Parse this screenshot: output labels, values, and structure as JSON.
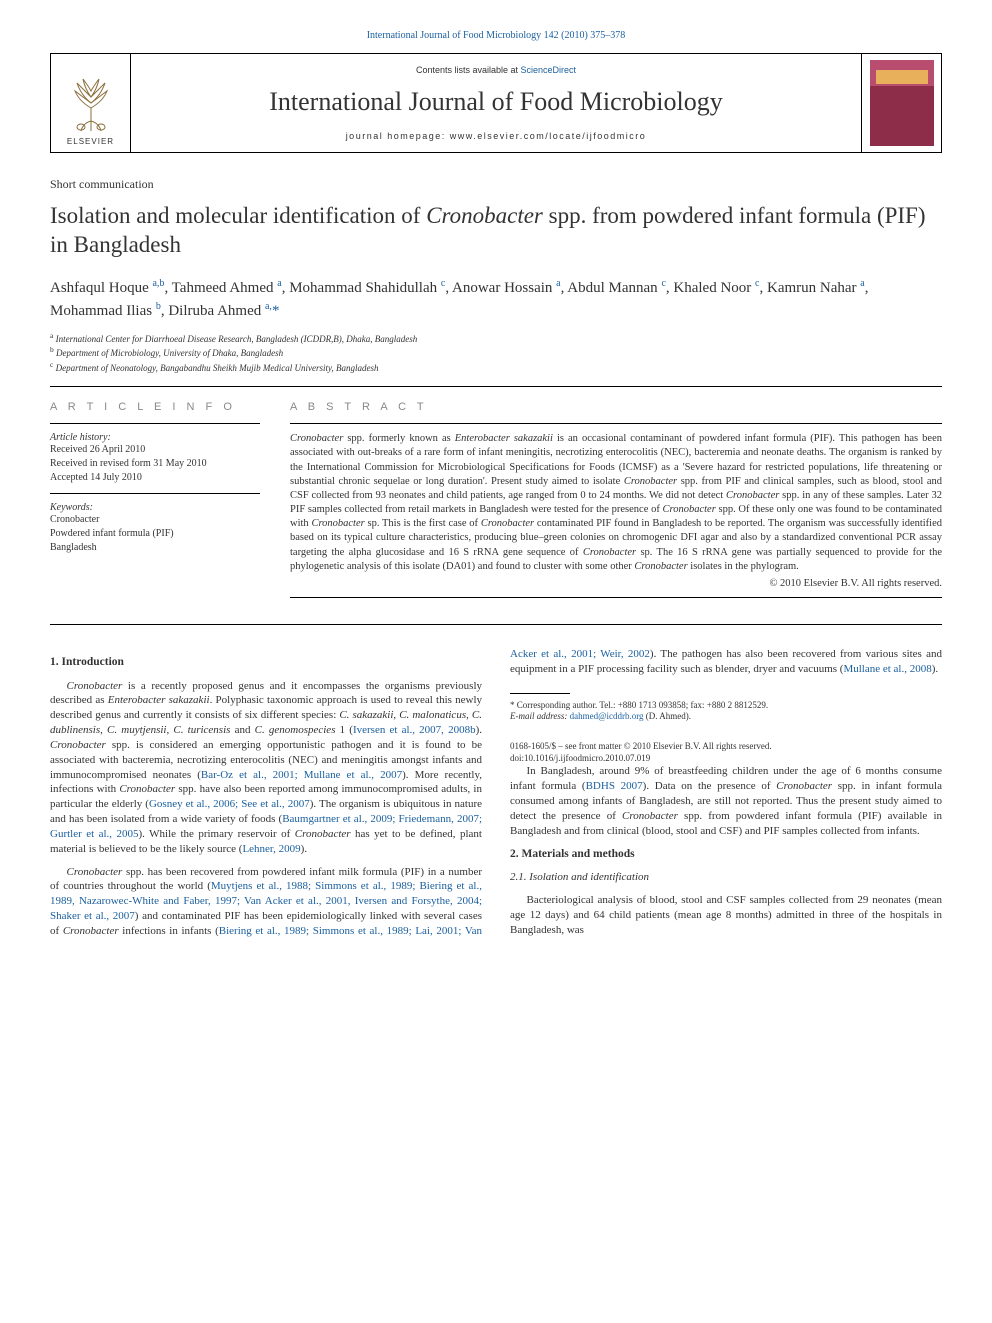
{
  "top_link": "International Journal of Food Microbiology 142 (2010) 375–378",
  "header": {
    "contents_prefix": "Contents lists available at ",
    "contents_link": "ScienceDirect",
    "journal": "International Journal of Food Microbiology",
    "homepage": "journal homepage: www.elsevier.com/locate/ijfoodmicro",
    "publisher": "ELSEVIER"
  },
  "article_type": "Short communication",
  "title_pre": "Isolation and molecular identification of ",
  "title_italic": "Cronobacter",
  "title_post": " spp. from powdered infant formula (PIF) in Bangladesh",
  "authors_html": "Ashfaqul Hoque <sup>a,b</sup>, Tahmeed Ahmed <sup>a</sup>, Mohammad Shahidullah <sup>c</sup>, Anowar Hossain <sup>a</sup>, Abdul Mannan <sup>c</sup>, Khaled Noor <sup>c</sup>, Kamrun Nahar <sup>a</sup>, Mohammad Ilias <sup>b</sup>, Dilruba Ahmed <sup>a,</sup><span class='corr'>*</span>",
  "affiliations": [
    {
      "key": "a",
      "text": "International Center for Diarrhoeal Disease Research, Bangladesh (ICDDR,B), Dhaka, Bangladesh"
    },
    {
      "key": "b",
      "text": "Department of Microbiology, University of Dhaka, Bangladesh"
    },
    {
      "key": "c",
      "text": "Department of Neonatology, Bangabandhu Sheikh Mujib Medical University, Bangladesh"
    }
  ],
  "info": {
    "heading": "A R T I C L E   I N F O",
    "history_label": "Article history:",
    "received": "Received 26 April 2010",
    "revised": "Received in revised form 31 May 2010",
    "accepted": "Accepted 14 July 2010",
    "keywords_label": "Keywords:",
    "keywords": [
      "Cronobacter",
      "Powdered infant formula (PIF)",
      "Bangladesh"
    ]
  },
  "abstract": {
    "heading": "A B S T R A C T",
    "text": "<span class='italic'>Cronobacter</span> spp. formerly known as <span class='italic'>Enterobacter sakazakii</span> is an occasional contaminant of powdered infant formula (PIF). This pathogen has been associated with out-breaks of a rare form of infant meningitis, necrotizing enterocolitis (NEC), bacteremia and neonate deaths. The organism is ranked by the International Commission for Microbiological Specifications for Foods (ICMSF) as a 'Severe hazard for restricted populations, life threatening or substantial chronic sequelae or long duration'. Present study aimed to isolate <span class='italic'>Cronobacter</span> spp. from PIF and clinical samples, such as blood, stool and CSF collected from 93 neonates and child patients, age ranged from 0 to 24 months. We did not detect <span class='italic'>Cronobacter</span> spp. in any of these samples. Later 32 PIF samples collected from retail markets in Bangladesh were tested for the presence of <span class='italic'>Cronobacter</span> spp. Of these only one was found to be contaminated with <span class='italic'>Cronobacter</span> sp. This is the first case of <span class='italic'>Cronobacter</span> contaminated PIF found in Bangladesh to be reported. The organism was successfully identified based on its typical culture characteristics, producing blue–green colonies on chromogenic DFI agar and also by a standardized conventional PCR assay targeting the alpha glucosidase and 16 S rRNA gene sequence of <span class='italic'>Cronobacter</span> sp. The 16 S rRNA gene was partially sequenced to provide for the phylogenetic analysis of this isolate (DA01) and found to cluster with some other <span class='italic'>Cronobacter</span> isolates in the phylogram.",
    "copyright": "© 2010 Elsevier B.V. All rights reserved."
  },
  "sections": {
    "intro_heading": "1. Introduction",
    "intro_p1": "<span class='italic'>Cronobacter</span> is a recently proposed genus and it encompasses the organisms previously described as <span class='italic'>Enterobacter sakazakii</span>. Polyphasic taxonomic approach is used to reveal this newly described genus and currently it consists of six different species: <span class='italic'>C. sakazakii</span>, <span class='italic'>C. malonaticus</span>, <span class='italic'>C. dublinensis</span>, <span class='italic'>C. muytjensii</span>, <span class='italic'>C. turicensis</span> and <span class='italic'>C. genomospecies</span> 1 (<span class='cite'>Iversen et al., 2007, 2008b</span>). <span class='italic'>Cronobacter</span> spp. is considered an emerging opportunistic pathogen and it is found to be associated with bacteremia, necrotizing enterocolitis (NEC) and meningitis amongst infants and immunocompromised neonates (<span class='cite'>Bar-Oz et al., 2001; Mullane et al., 2007</span>). More recently, infections with <span class='italic'>Cronobacter</span> spp. have also been reported among immunocompromised adults, in particular the elderly (<span class='cite'>Gosney et al., 2006; See et al., 2007</span>). The organism is ubiquitous in nature and has been isolated from a wide variety of foods (<span class='cite'>Baumgartner et al., 2009; Friedemann, 2007; Gurtler et al., 2005</span>). While the primary reservoir of <span class='italic'>Cronobacter</span> has yet to be defined, plant material is believed to be the likely source (<span class='cite'>Lehner, 2009</span>).",
    "intro_p2": "<span class='italic'>Cronobacter</span> spp. has been recovered from powdered infant milk formula (PIF) in a number of countries throughout the world (<span class='cite'>Muytjens et al., 1988; Simmons et al., 1989; Biering et al., 1989, Nazarowec-White and Faber, 1997; Van Acker et al., 2001, Iversen and Forsythe, 2004; Shaker et al., 2007</span>) and contaminated PIF has been epidemiologically linked with several cases of <span class='italic'>Cronobacter</span> infections in infants (<span class='cite'>Biering et al., 1989; Simmons et al., 1989; Lai, 2001; Van Acker et al., 2001; Weir, 2002</span>). The pathogen has also been recovered from various sites and equipment in a PIF processing facility such as blender, dryer and vacuums (<span class='cite'>Mullane et al., 2008</span>).",
    "intro_p3": "In Bangladesh, around 9% of breastfeeding children under the age of 6 months consume infant formula (<span class='cite'>BDHS 2007</span>). Data on the presence of <span class='italic'>Cronobacter</span> spp. in infant formula consumed among infants of Bangladesh, are still not reported. Thus the present study aimed to detect the presence of <span class='italic'>Cronobacter</span> spp. from powdered infant formula (PIF) available in Bangladesh and from clinical (blood, stool and CSF) and PIF samples collected from infants.",
    "methods_heading": "2. Materials and methods",
    "methods_sub1": "2.1. Isolation and identification",
    "methods_p1": "Bacteriological analysis of blood, stool and CSF samples collected from 29 neonates (mean age 12 days) and 64 child patients (mean age 8 months) admitted in three of the hospitals in Bangladesh, was"
  },
  "footnotes": {
    "corr": "* Corresponding author. Tel.: +880 1713 093858; fax: +880 2 8812529.",
    "email_label": "E-mail address:",
    "email": "dahmed@icddrb.org",
    "email_suffix": " (D. Ahmed)."
  },
  "bottom": {
    "line1": "0168-1605/$ – see front matter © 2010 Elsevier B.V. All rights reserved.",
    "line2": "doi:10.1016/j.ijfoodmicro.2010.07.019"
  },
  "colors": {
    "link": "#1a5f9e",
    "text": "#333333",
    "heading_grey": "#888888",
    "cover_top": "#b84d6f",
    "cover_bottom": "#8d2d4a",
    "cover_band": "#e8b05a"
  }
}
